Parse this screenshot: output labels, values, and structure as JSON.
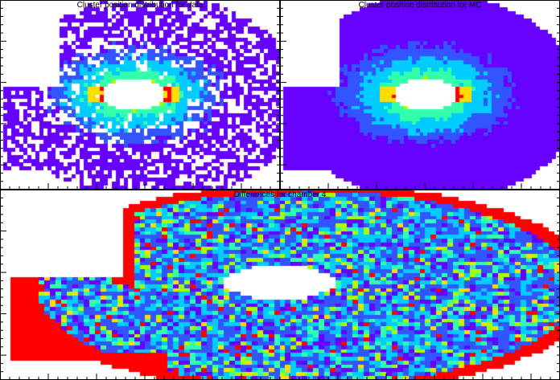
{
  "chart_data": [
    {
      "type": "heatmap",
      "title": "Cluster position distribution for data",
      "xlabel": "",
      "ylabel": "",
      "bins": [
        70,
        50
      ],
      "palette": [
        "#6600ff",
        "#3355ff",
        "#00ccff",
        "#33ffaa",
        "#aaff00",
        "#ffdd00",
        "#ff0000"
      ],
      "shape": "D-shaped acceptance with central elliptical hole; hot spots at inner edge left/right",
      "hole": {
        "cx": 0.48,
        "cy": 0.5,
        "rx": 0.11,
        "ry": 0.09
      },
      "density": "sparse"
    },
    {
      "type": "heatmap",
      "title": "Cluster position distribution for MC",
      "xlabel": "",
      "ylabel": "",
      "bins": [
        70,
        50
      ],
      "palette": [
        "#6600ff",
        "#3355ff",
        "#00ccff",
        "#33ffaa",
        "#aaff00",
        "#ffdd00",
        "#ff0000"
      ],
      "shape": "D-shaped acceptance with central elliptical hole; hot spots at inner edge left/right",
      "hole": {
        "cx": 0.52,
        "cy": 0.5,
        "rx": 0.11,
        "ry": 0.09
      },
      "density": "full"
    },
    {
      "type": "heatmap",
      "title": "Differences for chamber 4",
      "xlabel": "",
      "ylabel": "",
      "bins": [
        100,
        50
      ],
      "palette": [
        "#6600ff",
        "#3355ff",
        "#00ccff",
        "#33ffaa",
        "#aaff00",
        "#ffdd00",
        "#ff0000"
      ],
      "shape": "D-shaped difference map, red rim at outer acceptance edge",
      "hole": {
        "cx": 0.5,
        "cy": 0.49,
        "rx": 0.1,
        "ry": 0.09
      },
      "density": "full"
    }
  ]
}
